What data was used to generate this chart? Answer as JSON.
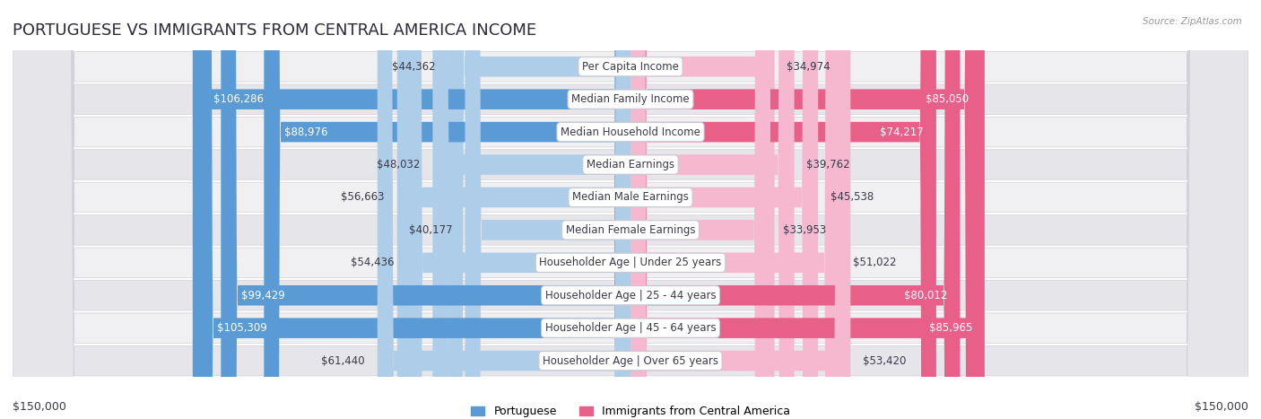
{
  "title": "PORTUGUESE VS IMMIGRANTS FROM CENTRAL AMERICA INCOME",
  "source": "Source: ZipAtlas.com",
  "categories": [
    "Per Capita Income",
    "Median Family Income",
    "Median Household Income",
    "Median Earnings",
    "Median Male Earnings",
    "Median Female Earnings",
    "Householder Age | Under 25 years",
    "Householder Age | 25 - 44 years",
    "Householder Age | 45 - 64 years",
    "Householder Age | Over 65 years"
  ],
  "portuguese_values": [
    44362,
    106286,
    88976,
    48032,
    56663,
    40177,
    54436,
    99429,
    105309,
    61440
  ],
  "immigrant_values": [
    34974,
    85050,
    74217,
    39762,
    45538,
    33953,
    51022,
    80012,
    85965,
    53420
  ],
  "max_value": 150000,
  "bar_color_portuguese_light": "#aecde8",
  "bar_color_portuguese_dark": "#5b9bd5",
  "bar_color_immigrant_light": "#f5b8ce",
  "bar_color_immigrant_dark": "#e8608a",
  "row_bg_odd": "#f0f0f2",
  "row_bg_even": "#e6e6ea",
  "row_border": "#d0d0d8",
  "text_color_dark": "#3a3a4a",
  "text_color_white": "#ffffff",
  "title_fontsize": 13,
  "label_fontsize": 8.5,
  "value_fontsize": 8.5,
  "legend_fontsize": 9,
  "axis_label_fontsize": 9,
  "background_color": "#ffffff",
  "port_large_threshold": 70000,
  "immig_large_threshold": 65000
}
